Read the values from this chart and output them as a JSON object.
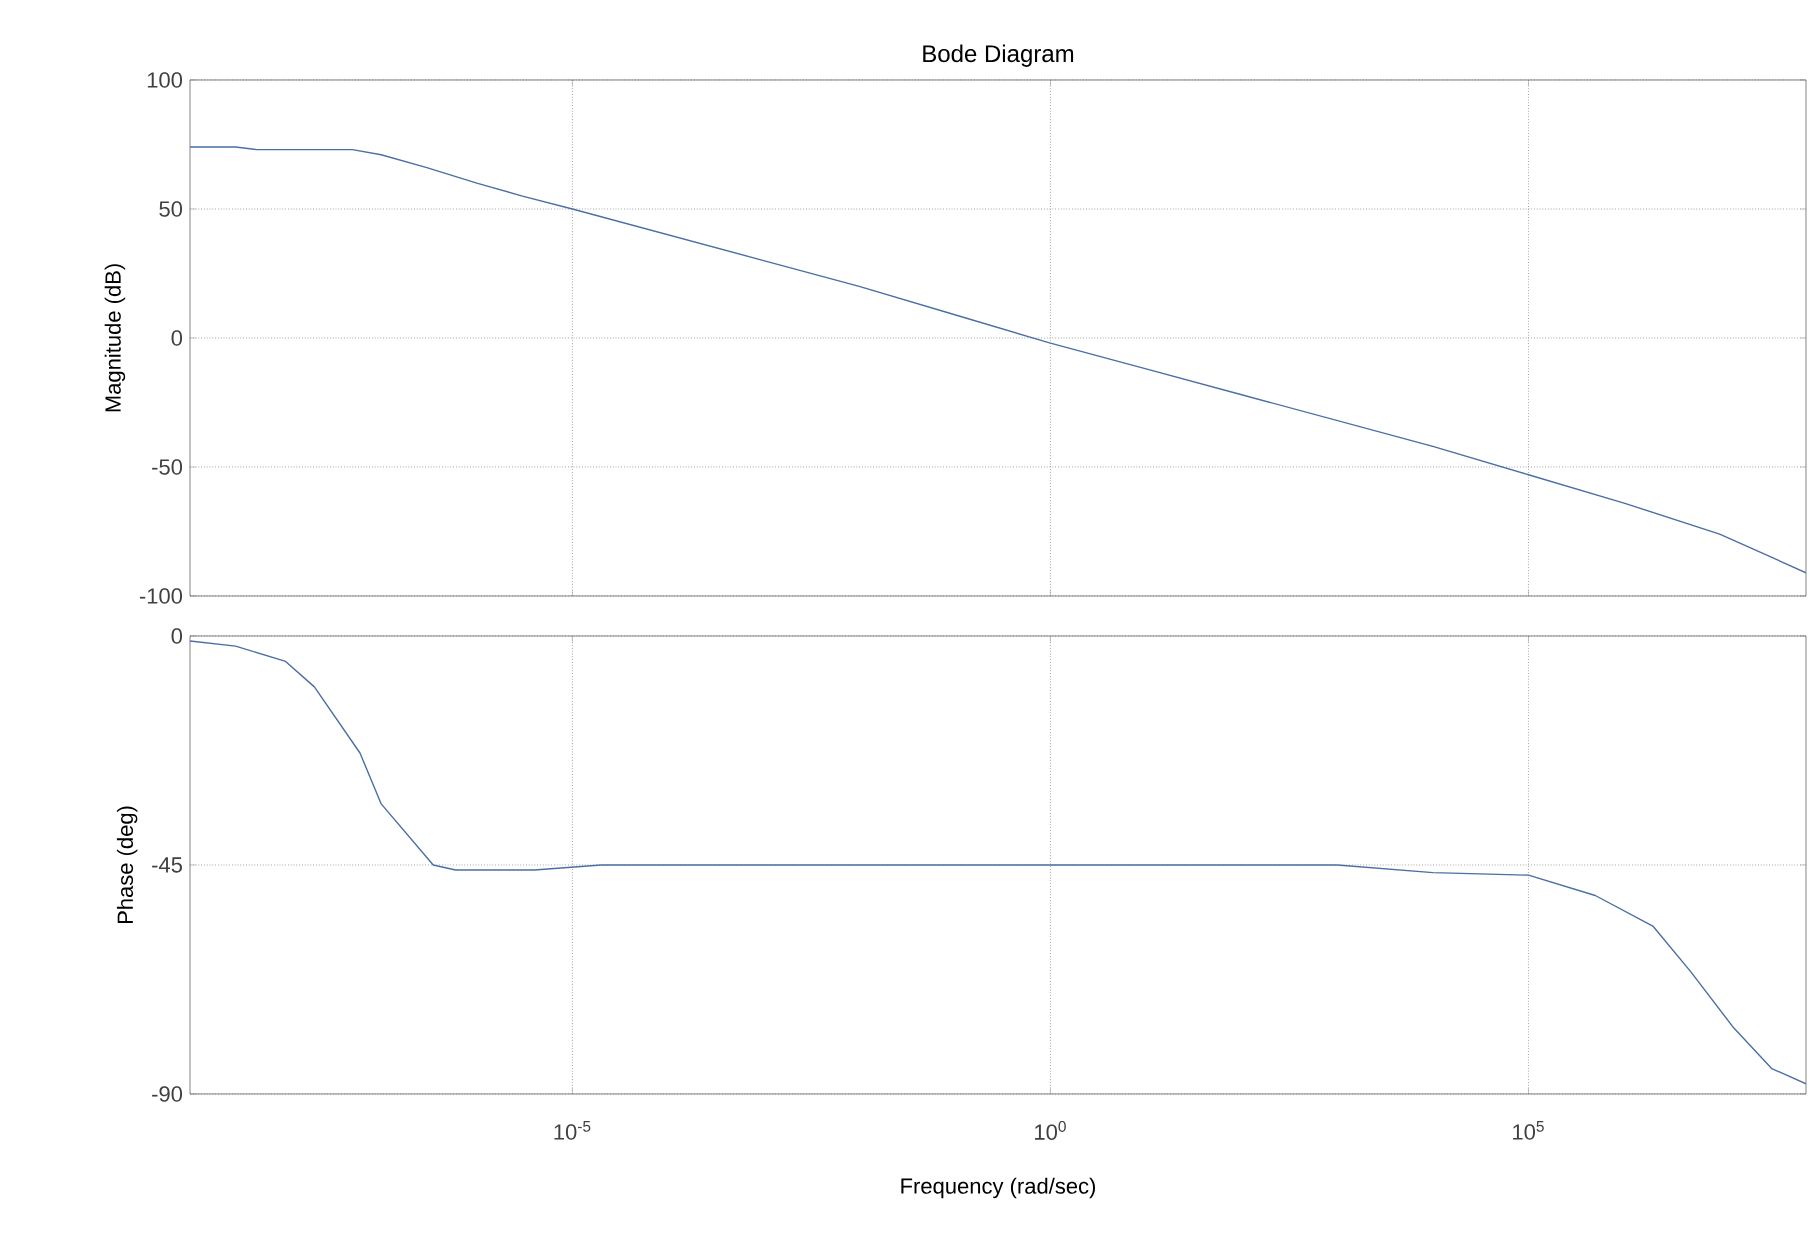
{
  "chart_data": [
    {
      "type": "line",
      "title": "Bode Diagram",
      "ylabel": "Magnitude (dB)",
      "log": "x",
      "grid": true,
      "tick_labels": "y",
      "color": "#4a6fa5",
      "x": [
        1e-09,
        3e-09,
        5e-09,
        5e-08,
        1e-07,
        3e-07,
        1e-06,
        3e-06,
        1e-05,
        0.0001,
        0.001,
        0.01,
        0.1,
        1,
        10,
        100,
        1000,
        10000.0,
        100000.0,
        1000000.0,
        10000000.0,
        80000000.0
      ],
      "values": [
        74,
        74,
        73,
        73,
        71,
        66,
        60,
        55,
        50,
        40,
        30,
        20,
        9,
        -2,
        -12,
        -22,
        -32,
        -42,
        -53,
        -64,
        -76,
        -91
      ],
      "xlim": [
        1e-09,
        80000000.0
      ],
      "ylim": [
        -100,
        100
      ],
      "yticks": [
        -100,
        -50,
        0,
        50,
        100
      ],
      "xticks": [
        {
          "value": 1e-05,
          "label": null
        },
        {
          "value": 1,
          "label": null
        },
        {
          "value": 100000.0,
          "label": null
        }
      ]
    },
    {
      "type": "line",
      "xlabel": "Frequency  (rad/sec)",
      "ylabel": "Phase (deg)",
      "log": "x",
      "grid": true,
      "color": "#4a6fa5",
      "x": [
        1e-09,
        3e-09,
        1e-08,
        2e-08,
        6e-08,
        1e-07,
        3.5e-07,
        6e-07,
        4e-06,
        2e-05,
        0.001,
        1,
        1000,
        10000.0,
        100000.0,
        500000.0,
        2000000.0,
        5000000.0,
        14000000.0,
        35000000.0,
        80000000.0
      ],
      "values": [
        -1,
        -2,
        -5,
        -10,
        -23,
        -33,
        -45,
        -46,
        -46,
        -45,
        -45,
        -45,
        -45,
        -46.5,
        -47,
        -51,
        -57,
        -66,
        -77,
        -85,
        -88
      ],
      "xlim": [
        1e-09,
        80000000.0
      ],
      "ylim": [
        -90,
        0
      ],
      "yticks": [
        -90,
        -45,
        0
      ],
      "xticks": [
        {
          "value": 1e-05,
          "label": "10$^{-5}$"
        },
        {
          "value": 1,
          "label": "10$^{0}$"
        },
        {
          "value": 100000.0,
          "label": "10$^{5}$"
        }
      ]
    }
  ]
}
